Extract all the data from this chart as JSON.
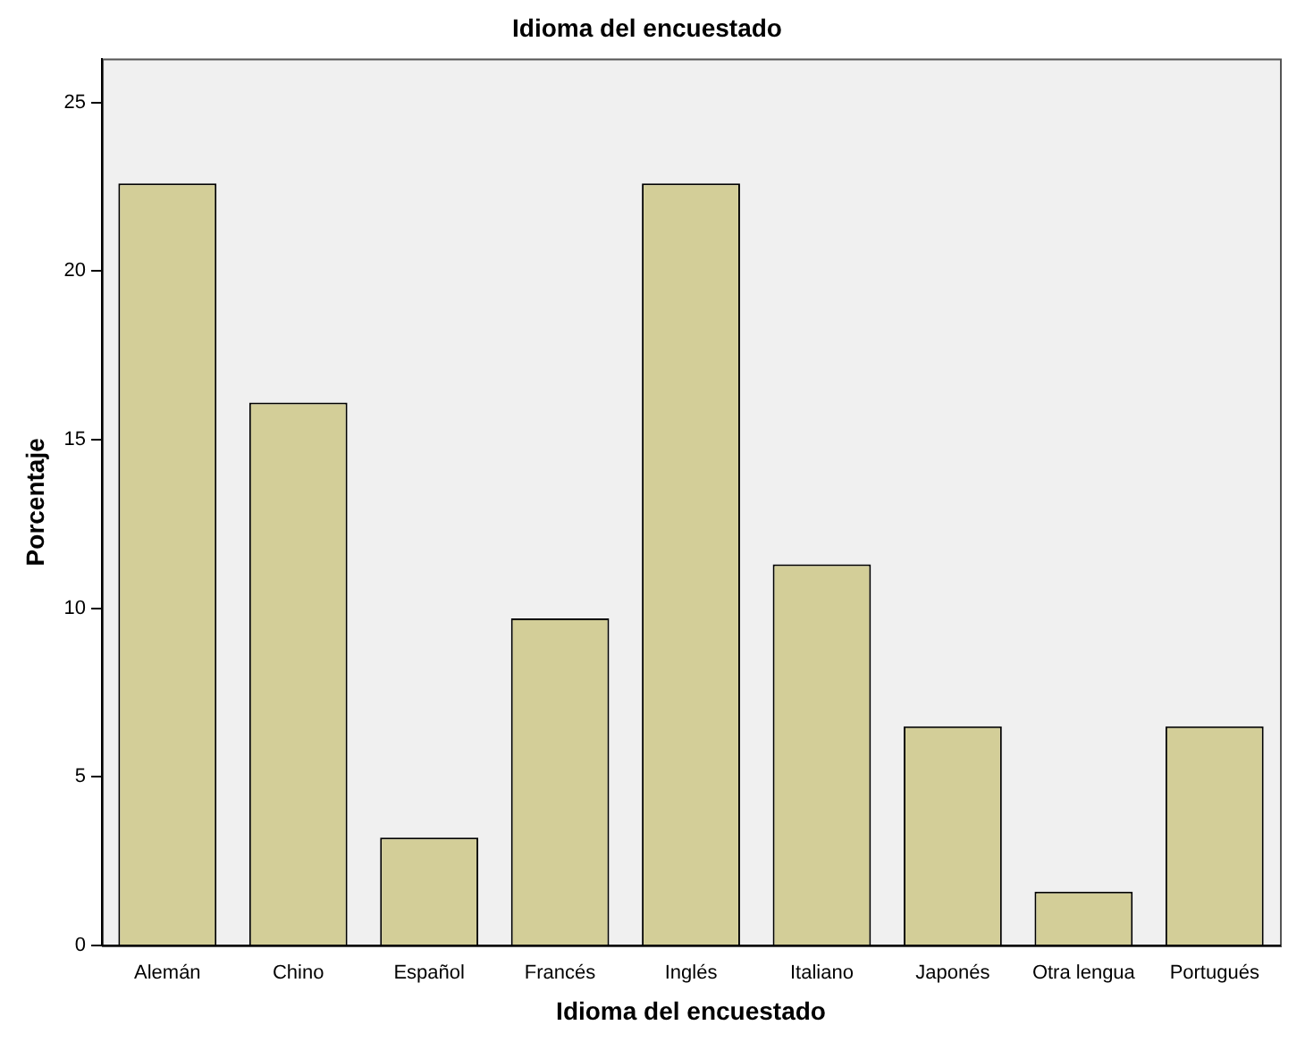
{
  "chart_data": {
    "type": "bar",
    "title": "Idioma del encuestado",
    "xlabel": "Idioma del encuestado",
    "ylabel": "Porcentaje",
    "categories": [
      "Alemán",
      "Chino",
      "Español",
      "Francés",
      "Inglés",
      "Italiano",
      "Japonés",
      "Otra lengua",
      "Portugués"
    ],
    "values": [
      22.6,
      16.1,
      3.2,
      9.7,
      22.6,
      11.3,
      6.5,
      1.6,
      6.5
    ],
    "color": "#d3ce98",
    "ylim": [
      0,
      26.3
    ],
    "yticks": [
      0,
      5,
      10,
      15,
      20,
      25
    ],
    "grid": false,
    "legend": false
  }
}
